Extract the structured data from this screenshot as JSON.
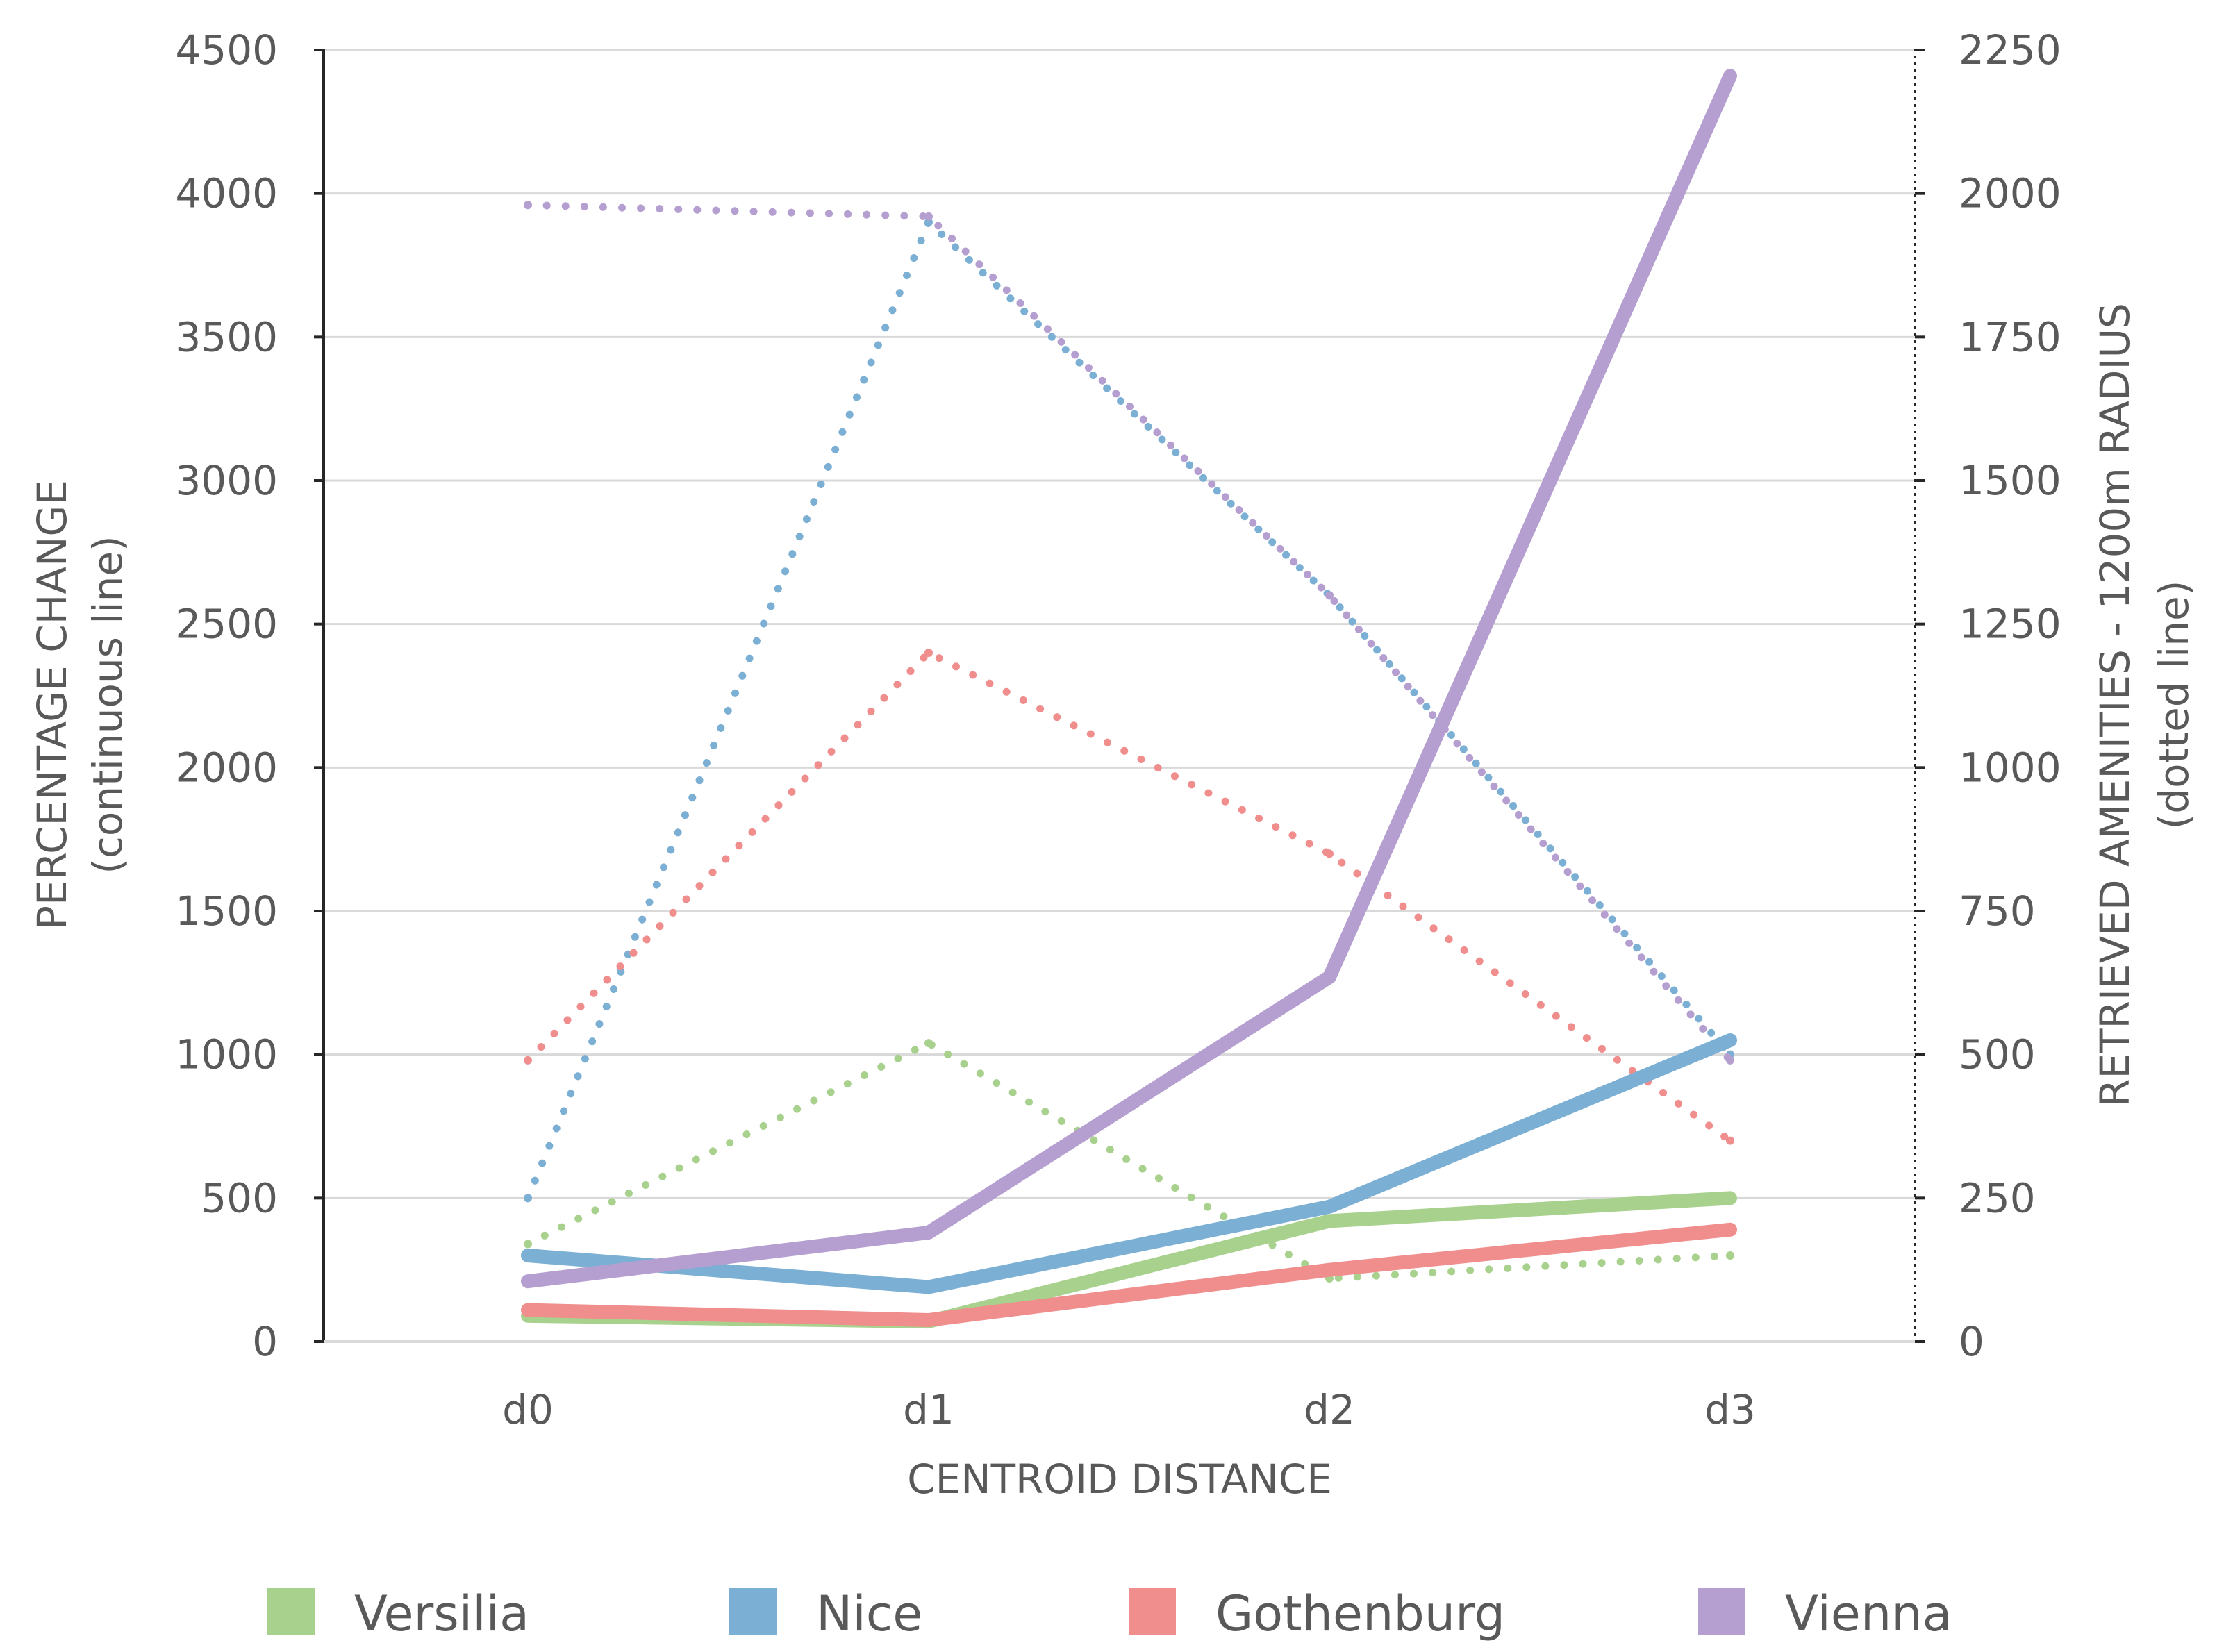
{
  "chart_data": {
    "type": "line",
    "title": "",
    "xlabel": "CENTROID DISTANCE",
    "ylabel": "PERCENTAGE CHANGE",
    "ylabel_sub": "(continuous line)",
    "y2label": "RETRIEVED AMENITIES - 1200m RADIUS",
    "y2label_sub": "(dotted line)",
    "categories": [
      "d0",
      "d1",
      "d2",
      "d3"
    ],
    "ylim": [
      0,
      4500
    ],
    "y_ticks": [
      0,
      500,
      1000,
      1500,
      2000,
      2500,
      3000,
      3500,
      4000,
      4500
    ],
    "y_tick_labels": [
      "0",
      "500",
      "1000",
      "1500",
      "2000",
      "2500",
      "3000",
      "3500",
      "4000",
      "4500"
    ],
    "y2lim": [
      0,
      2250
    ],
    "y2_ticks": [
      0,
      250,
      500,
      750,
      1000,
      1250,
      1500,
      1750,
      2000,
      2250
    ],
    "y2_tick_labels": [
      "0",
      "250",
      "500",
      "750",
      "1000",
      "1250",
      "1500",
      "1750",
      "2000",
      "2250"
    ],
    "grid": true,
    "legend_position": "bottom",
    "series": [
      {
        "name": "Versilia",
        "color": "#a9d18e",
        "percentage_change": [
          90,
          70,
          420,
          500
        ],
        "retrieved_amenities": [
          170,
          520,
          110,
          150
        ]
      },
      {
        "name": "Nice",
        "color": "#7bafd4",
        "percentage_change": [
          300,
          190,
          470,
          1050
        ],
        "retrieved_amenities": [
          250,
          1950,
          1300,
          500
        ]
      },
      {
        "name": "Gothenburg",
        "color": "#f08d8d",
        "percentage_change": [
          110,
          75,
          250,
          390
        ],
        "retrieved_amenities": [
          490,
          1200,
          850,
          350
        ]
      },
      {
        "name": "Vienna",
        "color": "#b59fd0",
        "percentage_change": [
          210,
          380,
          1270,
          4410
        ],
        "retrieved_amenities": [
          1980,
          1960,
          1300,
          490
        ]
      }
    ]
  }
}
